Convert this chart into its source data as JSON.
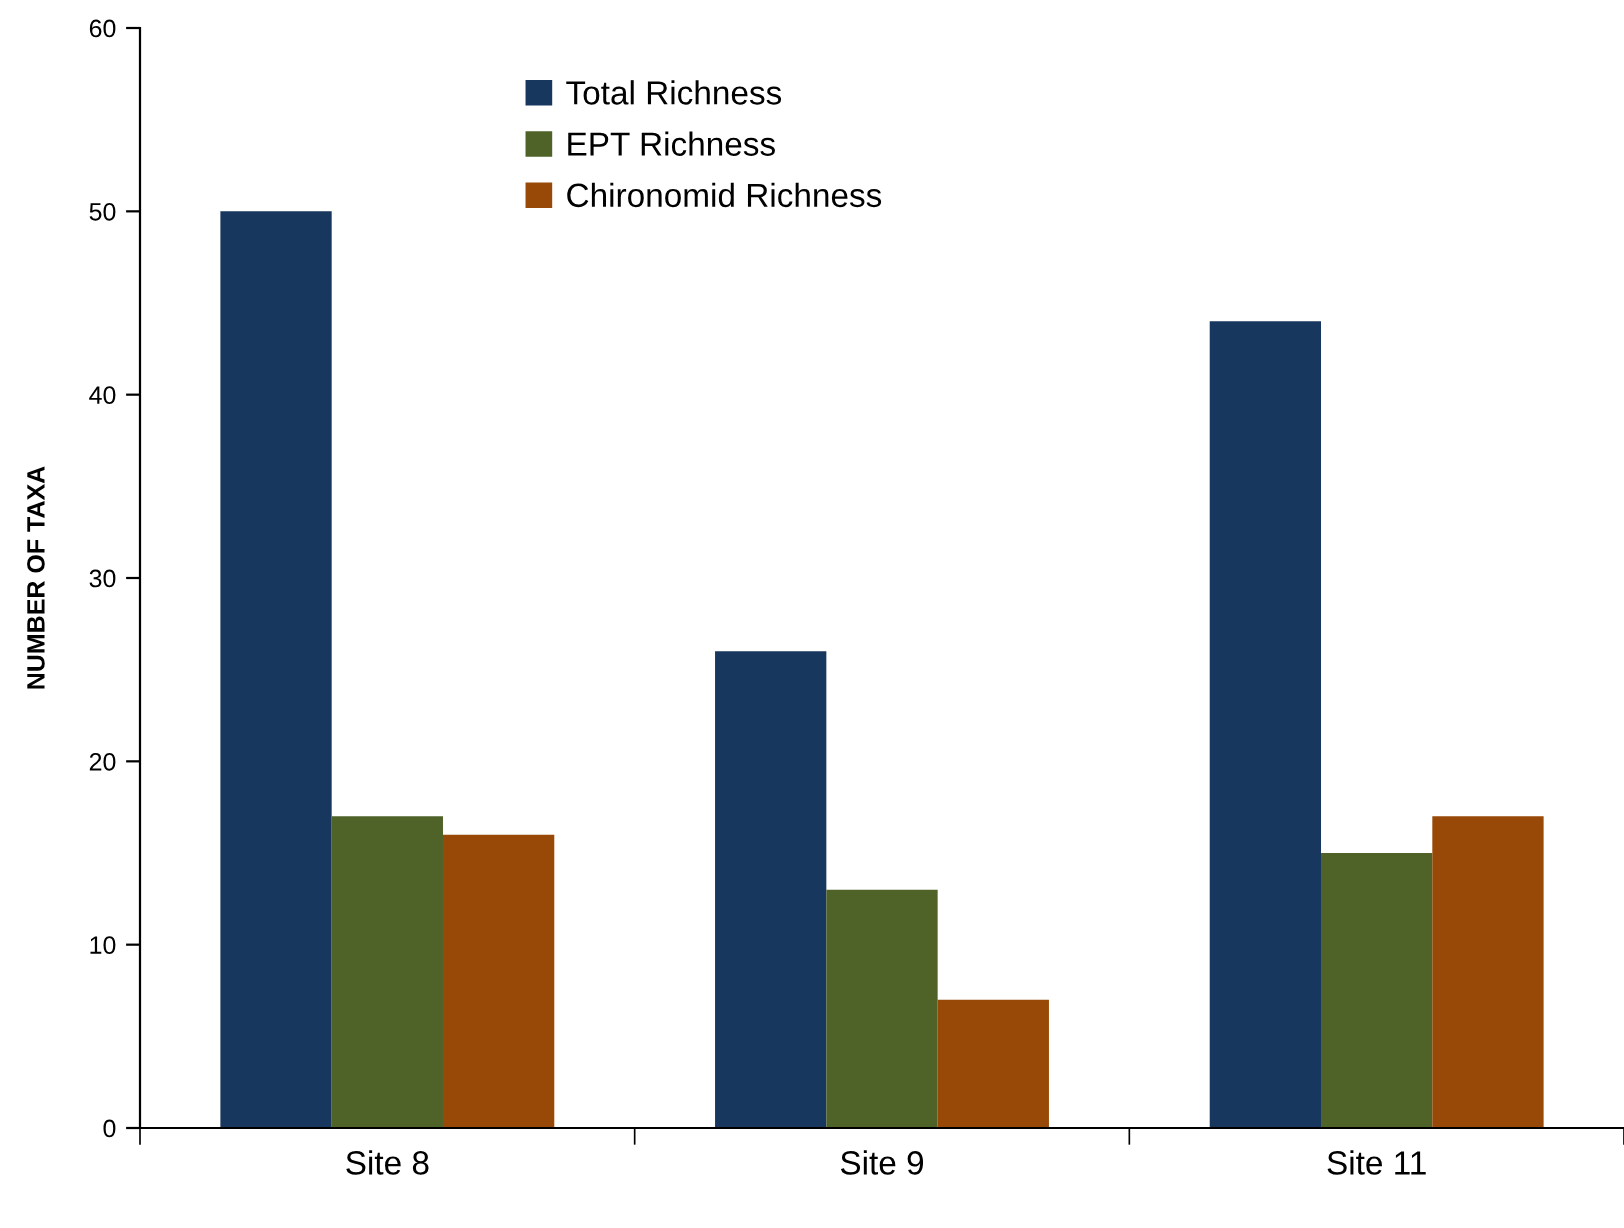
{
  "chart_data": {
    "type": "bar",
    "ylabel": "NUMBER OF TAXA",
    "categories": [
      "Site 8",
      "Site 9",
      "Site 11"
    ],
    "series": [
      {
        "name": "Total Richness",
        "color": "#17375e",
        "values": [
          50,
          26,
          44
        ]
      },
      {
        "name": "EPT Richness",
        "color": "#4f6228",
        "values": [
          17,
          13,
          15
        ]
      },
      {
        "name": "Chironomid Richness",
        "color": "#984807",
        "values": [
          16,
          7,
          17
        ]
      }
    ],
    "ylim": [
      0,
      60
    ],
    "yticks": [
      0,
      10,
      20,
      30,
      40,
      50,
      60
    ],
    "grid": false,
    "legend": "top"
  }
}
